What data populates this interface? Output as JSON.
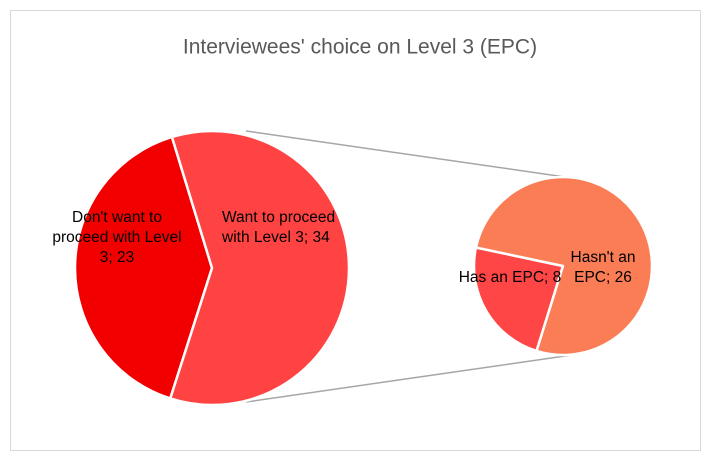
{
  "chart_data": {
    "type": "pie_of_pie",
    "title": "Interviewees' choice on Level 3 (EPC)",
    "pies": [
      {
        "values": [
          23,
          34
        ],
        "value_labels": [
          "Don't want to proceed with Level 3; 23",
          "Want to proceed with Level 3; 34"
        ],
        "colors": [
          "#f20000",
          "#ff4343"
        ]
      },
      {
        "values": [
          8,
          26
        ],
        "value_labels": [
          "Has an EPC; 8",
          "Hasn't an EPC; 26"
        ],
        "colors": [
          "#ff4646",
          "#fb7d55"
        ]
      }
    ]
  }
}
